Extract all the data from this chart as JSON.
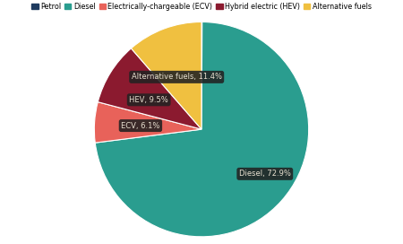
{
  "labels": [
    "Petrol",
    "Diesel",
    "Electrically-chargeable (ECV)",
    "Hybrid electric (HEV)",
    "Alternative fuels"
  ],
  "values": [
    0.1,
    72.9,
    6.1,
    9.5,
    11.4
  ],
  "colors": [
    "#1e3a5f",
    "#2a9d8f",
    "#e8625a",
    "#8b1a2f",
    "#f0c040"
  ],
  "legend_labels": [
    "Petrol",
    "Diesel",
    "Electrically-chargeable (ECV)",
    "Hybrid electric (HEV)",
    "Alternative fuels"
  ],
  "label_box_color": "#222222",
  "label_text_color": "#e8e0d0",
  "background_color": "#ffffff",
  "startangle": 90,
  "figsize": [
    4.5,
    2.72
  ],
  "dpi": 100
}
